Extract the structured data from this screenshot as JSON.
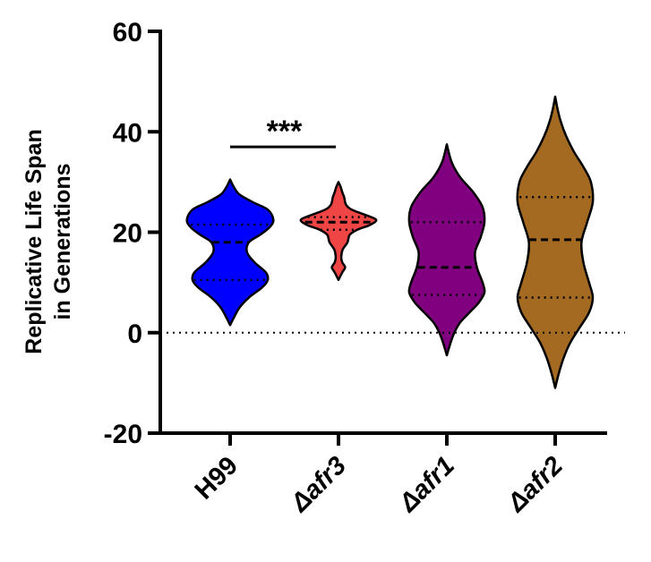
{
  "chart_data": {
    "type": "violin",
    "title": "",
    "xlabel": "",
    "ylabel_lines": [
      "Replicative Life Span",
      "in Generations"
    ],
    "ylim": [
      -20,
      60
    ],
    "yticks": [
      -20,
      0,
      20,
      40,
      60
    ],
    "ytick_labels": [
      "-20",
      "0",
      "20",
      "40",
      "60"
    ],
    "reference_line": {
      "y": 0,
      "style": "dotted"
    },
    "categories": [
      {
        "prefix": "",
        "name": "H99"
      },
      {
        "prefix": "Δ",
        "name": "afr3"
      },
      {
        "prefix": "Δ",
        "name": "afr1"
      },
      {
        "prefix": "Δ",
        "name": "afr2"
      }
    ],
    "groups": [
      {
        "name": "H99",
        "color": "#0000ff",
        "min": 1.5,
        "max": 30.5,
        "median": 18,
        "q1": 10.5,
        "q3": 21.5,
        "density": [
          [
            1.5,
            0
          ],
          [
            3,
            0.02
          ],
          [
            5,
            0.05
          ],
          [
            7,
            0.1
          ],
          [
            9,
            0.17
          ],
          [
            10.5,
            0.2
          ],
          [
            12,
            0.19
          ],
          [
            14,
            0.13
          ],
          [
            16,
            0.09
          ],
          [
            18,
            0.1
          ],
          [
            19.5,
            0.16
          ],
          [
            21,
            0.21
          ],
          [
            22.5,
            0.23
          ],
          [
            24.5,
            0.2
          ],
          [
            26,
            0.12
          ],
          [
            27.5,
            0.05
          ],
          [
            29,
            0.02
          ],
          [
            30.5,
            0
          ]
        ]
      },
      {
        "name": "afr3",
        "color": "#f04545",
        "min": 10.5,
        "max": 30,
        "median": 22,
        "q1": 20.5,
        "q3": 23,
        "density": [
          [
            10.5,
            0
          ],
          [
            12,
            0.02
          ],
          [
            13,
            0.035
          ],
          [
            14,
            0.02
          ],
          [
            15,
            0.015
          ],
          [
            16.5,
            0.022
          ],
          [
            18,
            0.048
          ],
          [
            19.5,
            0.06
          ],
          [
            20.5,
            0.1
          ],
          [
            21.5,
            0.17
          ],
          [
            22.5,
            0.2
          ],
          [
            23.5,
            0.14
          ],
          [
            24.5,
            0.07
          ],
          [
            25.5,
            0.04
          ],
          [
            27,
            0.03
          ],
          [
            28,
            0.02
          ],
          [
            29,
            0.012
          ],
          [
            30,
            0
          ]
        ]
      },
      {
        "name": "afr1",
        "color": "#800080",
        "min": -4.5,
        "max": 37.5,
        "median": 13,
        "q1": 7.5,
        "q3": 22,
        "density": [
          [
            -4.5,
            0
          ],
          [
            -2,
            0.02
          ],
          [
            0,
            0.04
          ],
          [
            2,
            0.07
          ],
          [
            4,
            0.12
          ],
          [
            6,
            0.17
          ],
          [
            8,
            0.2
          ],
          [
            10,
            0.19
          ],
          [
            13,
            0.16
          ],
          [
            16,
            0.15
          ],
          [
            19,
            0.18
          ],
          [
            22,
            0.2
          ],
          [
            25,
            0.19
          ],
          [
            28,
            0.14
          ],
          [
            31,
            0.07
          ],
          [
            34,
            0.025
          ],
          [
            37.5,
            0
          ]
        ]
      },
      {
        "name": "afr2",
        "color": "#a56a22",
        "min": -11,
        "max": 47,
        "median": 18.5,
        "q1": 7,
        "q3": 27,
        "density": [
          [
            -11,
            0
          ],
          [
            -8,
            0.02
          ],
          [
            -5,
            0.045
          ],
          [
            -2,
            0.08
          ],
          [
            1,
            0.13
          ],
          [
            4,
            0.18
          ],
          [
            7,
            0.2
          ],
          [
            10,
            0.18
          ],
          [
            14,
            0.15
          ],
          [
            18,
            0.14
          ],
          [
            22,
            0.17
          ],
          [
            26,
            0.2
          ],
          [
            30,
            0.19
          ],
          [
            33,
            0.15
          ],
          [
            36,
            0.1
          ],
          [
            39,
            0.06
          ],
          [
            42,
            0.03
          ],
          [
            45,
            0.01
          ],
          [
            47,
            0
          ]
        ]
      }
    ],
    "significance": {
      "label": "***",
      "from": 0,
      "to": 1,
      "y": 37
    }
  }
}
